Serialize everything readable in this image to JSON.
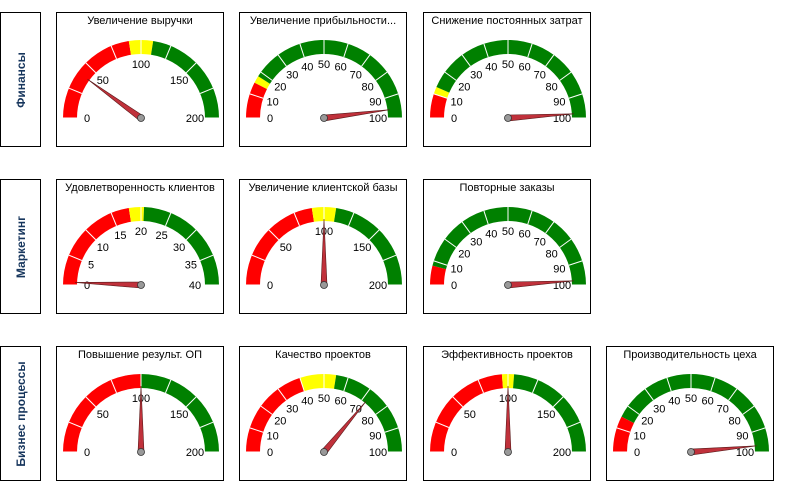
{
  "colors": {
    "red": "#ff0000",
    "yellow": "#ffff00",
    "green": "#008000",
    "needle": "#c0313b",
    "hub": "#999999"
  },
  "chart_data": [
    {
      "type": "gauge",
      "row": "Финансы",
      "title": "Увеличение выручки",
      "min": 0,
      "max": 200,
      "ticks": [
        0,
        50,
        100,
        150,
        200
      ],
      "minor_step": 25,
      "value": 40,
      "bands": [
        {
          "from": 0,
          "to": 90,
          "color": "red"
        },
        {
          "from": 90,
          "to": 110,
          "color": "yellow"
        },
        {
          "from": 110,
          "to": 200,
          "color": "green"
        }
      ]
    },
    {
      "type": "gauge",
      "row": "Финансы",
      "title": "Увеличение  прибыльности...",
      "min": 0,
      "max": 100,
      "ticks": [
        0,
        10,
        20,
        30,
        40,
        50,
        60,
        70,
        80,
        90,
        100
      ],
      "minor_step": 10,
      "value": 96,
      "bands": [
        {
          "from": 0,
          "to": 15,
          "color": "red"
        },
        {
          "from": 15,
          "to": 18,
          "color": "yellow"
        },
        {
          "from": 18,
          "to": 100,
          "color": "green"
        }
      ]
    },
    {
      "type": "gauge",
      "row": "Финансы",
      "title": "Снижение постоянных затрат",
      "min": 0,
      "max": 100,
      "ticks": [
        0,
        10,
        20,
        30,
        40,
        50,
        60,
        70,
        80,
        90,
        100
      ],
      "minor_step": 10,
      "value": 98,
      "bands": [
        {
          "from": 0,
          "to": 10,
          "color": "red"
        },
        {
          "from": 10,
          "to": 13,
          "color": "yellow"
        },
        {
          "from": 13,
          "to": 100,
          "color": "green"
        }
      ]
    },
    {
      "type": "gauge",
      "row": "Маркетинг",
      "title": "Удовлетворенность клиентов",
      "min": 0,
      "max": 40,
      "ticks": [
        0,
        5,
        10,
        15,
        20,
        25,
        30,
        35,
        40
      ],
      "minor_step": 5,
      "value": 0.5,
      "bands": [
        {
          "from": 0,
          "to": 18,
          "color": "red"
        },
        {
          "from": 18,
          "to": 20.5,
          "color": "yellow"
        },
        {
          "from": 20.5,
          "to": 40,
          "color": "green"
        }
      ]
    },
    {
      "type": "gauge",
      "row": "Маркетинг",
      "title": "Увеличение клиентской базы",
      "min": 0,
      "max": 200,
      "ticks": [
        0,
        50,
        100,
        150,
        200
      ],
      "minor_step": 25,
      "value": 100,
      "bands": [
        {
          "from": 0,
          "to": 90,
          "color": "red"
        },
        {
          "from": 90,
          "to": 110,
          "color": "yellow"
        },
        {
          "from": 110,
          "to": 200,
          "color": "green"
        }
      ]
    },
    {
      "type": "gauge",
      "row": "Маркетинг",
      "title": "Повторные заказы",
      "min": 0,
      "max": 100,
      "ticks": [
        0,
        10,
        20,
        30,
        40,
        50,
        60,
        70,
        80,
        90,
        100
      ],
      "minor_step": 10,
      "value": 98,
      "bands": [
        {
          "from": 0,
          "to": 8,
          "color": "red"
        },
        {
          "from": 8,
          "to": 100,
          "color": "green"
        }
      ]
    },
    {
      "type": "gauge",
      "row": "Бизнес процессы",
      "title": "Повышение результ. ОП",
      "min": 0,
      "max": 200,
      "ticks": [
        0,
        50,
        100,
        150,
        200
      ],
      "minor_step": 25,
      "value": 100,
      "bands": [
        {
          "from": 0,
          "to": 100,
          "color": "red"
        },
        {
          "from": 100,
          "to": 200,
          "color": "green"
        }
      ]
    },
    {
      "type": "gauge",
      "row": "Бизнес процессы",
      "title": "Качество проектов",
      "min": 0,
      "max": 100,
      "ticks": [
        0,
        10,
        20,
        30,
        40,
        50,
        60,
        70,
        80,
        90,
        100
      ],
      "minor_step": 10,
      "value": 72,
      "bands": [
        {
          "from": 0,
          "to": 40,
          "color": "red"
        },
        {
          "from": 40,
          "to": 55,
          "color": "yellow"
        },
        {
          "from": 55,
          "to": 100,
          "color": "green"
        }
      ]
    },
    {
      "type": "gauge",
      "row": "Бизнес процессы",
      "title": "Эффективность проектов",
      "min": 0,
      "max": 200,
      "ticks": [
        0,
        50,
        100,
        150,
        200
      ],
      "minor_step": 25,
      "value": 100,
      "bands": [
        {
          "from": 0,
          "to": 95,
          "color": "red"
        },
        {
          "from": 95,
          "to": 105,
          "color": "yellow"
        },
        {
          "from": 105,
          "to": 200,
          "color": "green"
        }
      ]
    },
    {
      "type": "gauge",
      "row": "Бизнес процессы",
      "title": "Производительность цеха",
      "min": 0,
      "max": 100,
      "ticks": [
        0,
        10,
        20,
        30,
        40,
        50,
        60,
        70,
        80,
        90,
        100
      ],
      "minor_step": 10,
      "value": 97,
      "bands": [
        {
          "from": 0,
          "to": 15,
          "color": "red"
        },
        {
          "from": 15,
          "to": 100,
          "color": "green"
        }
      ]
    }
  ]
}
